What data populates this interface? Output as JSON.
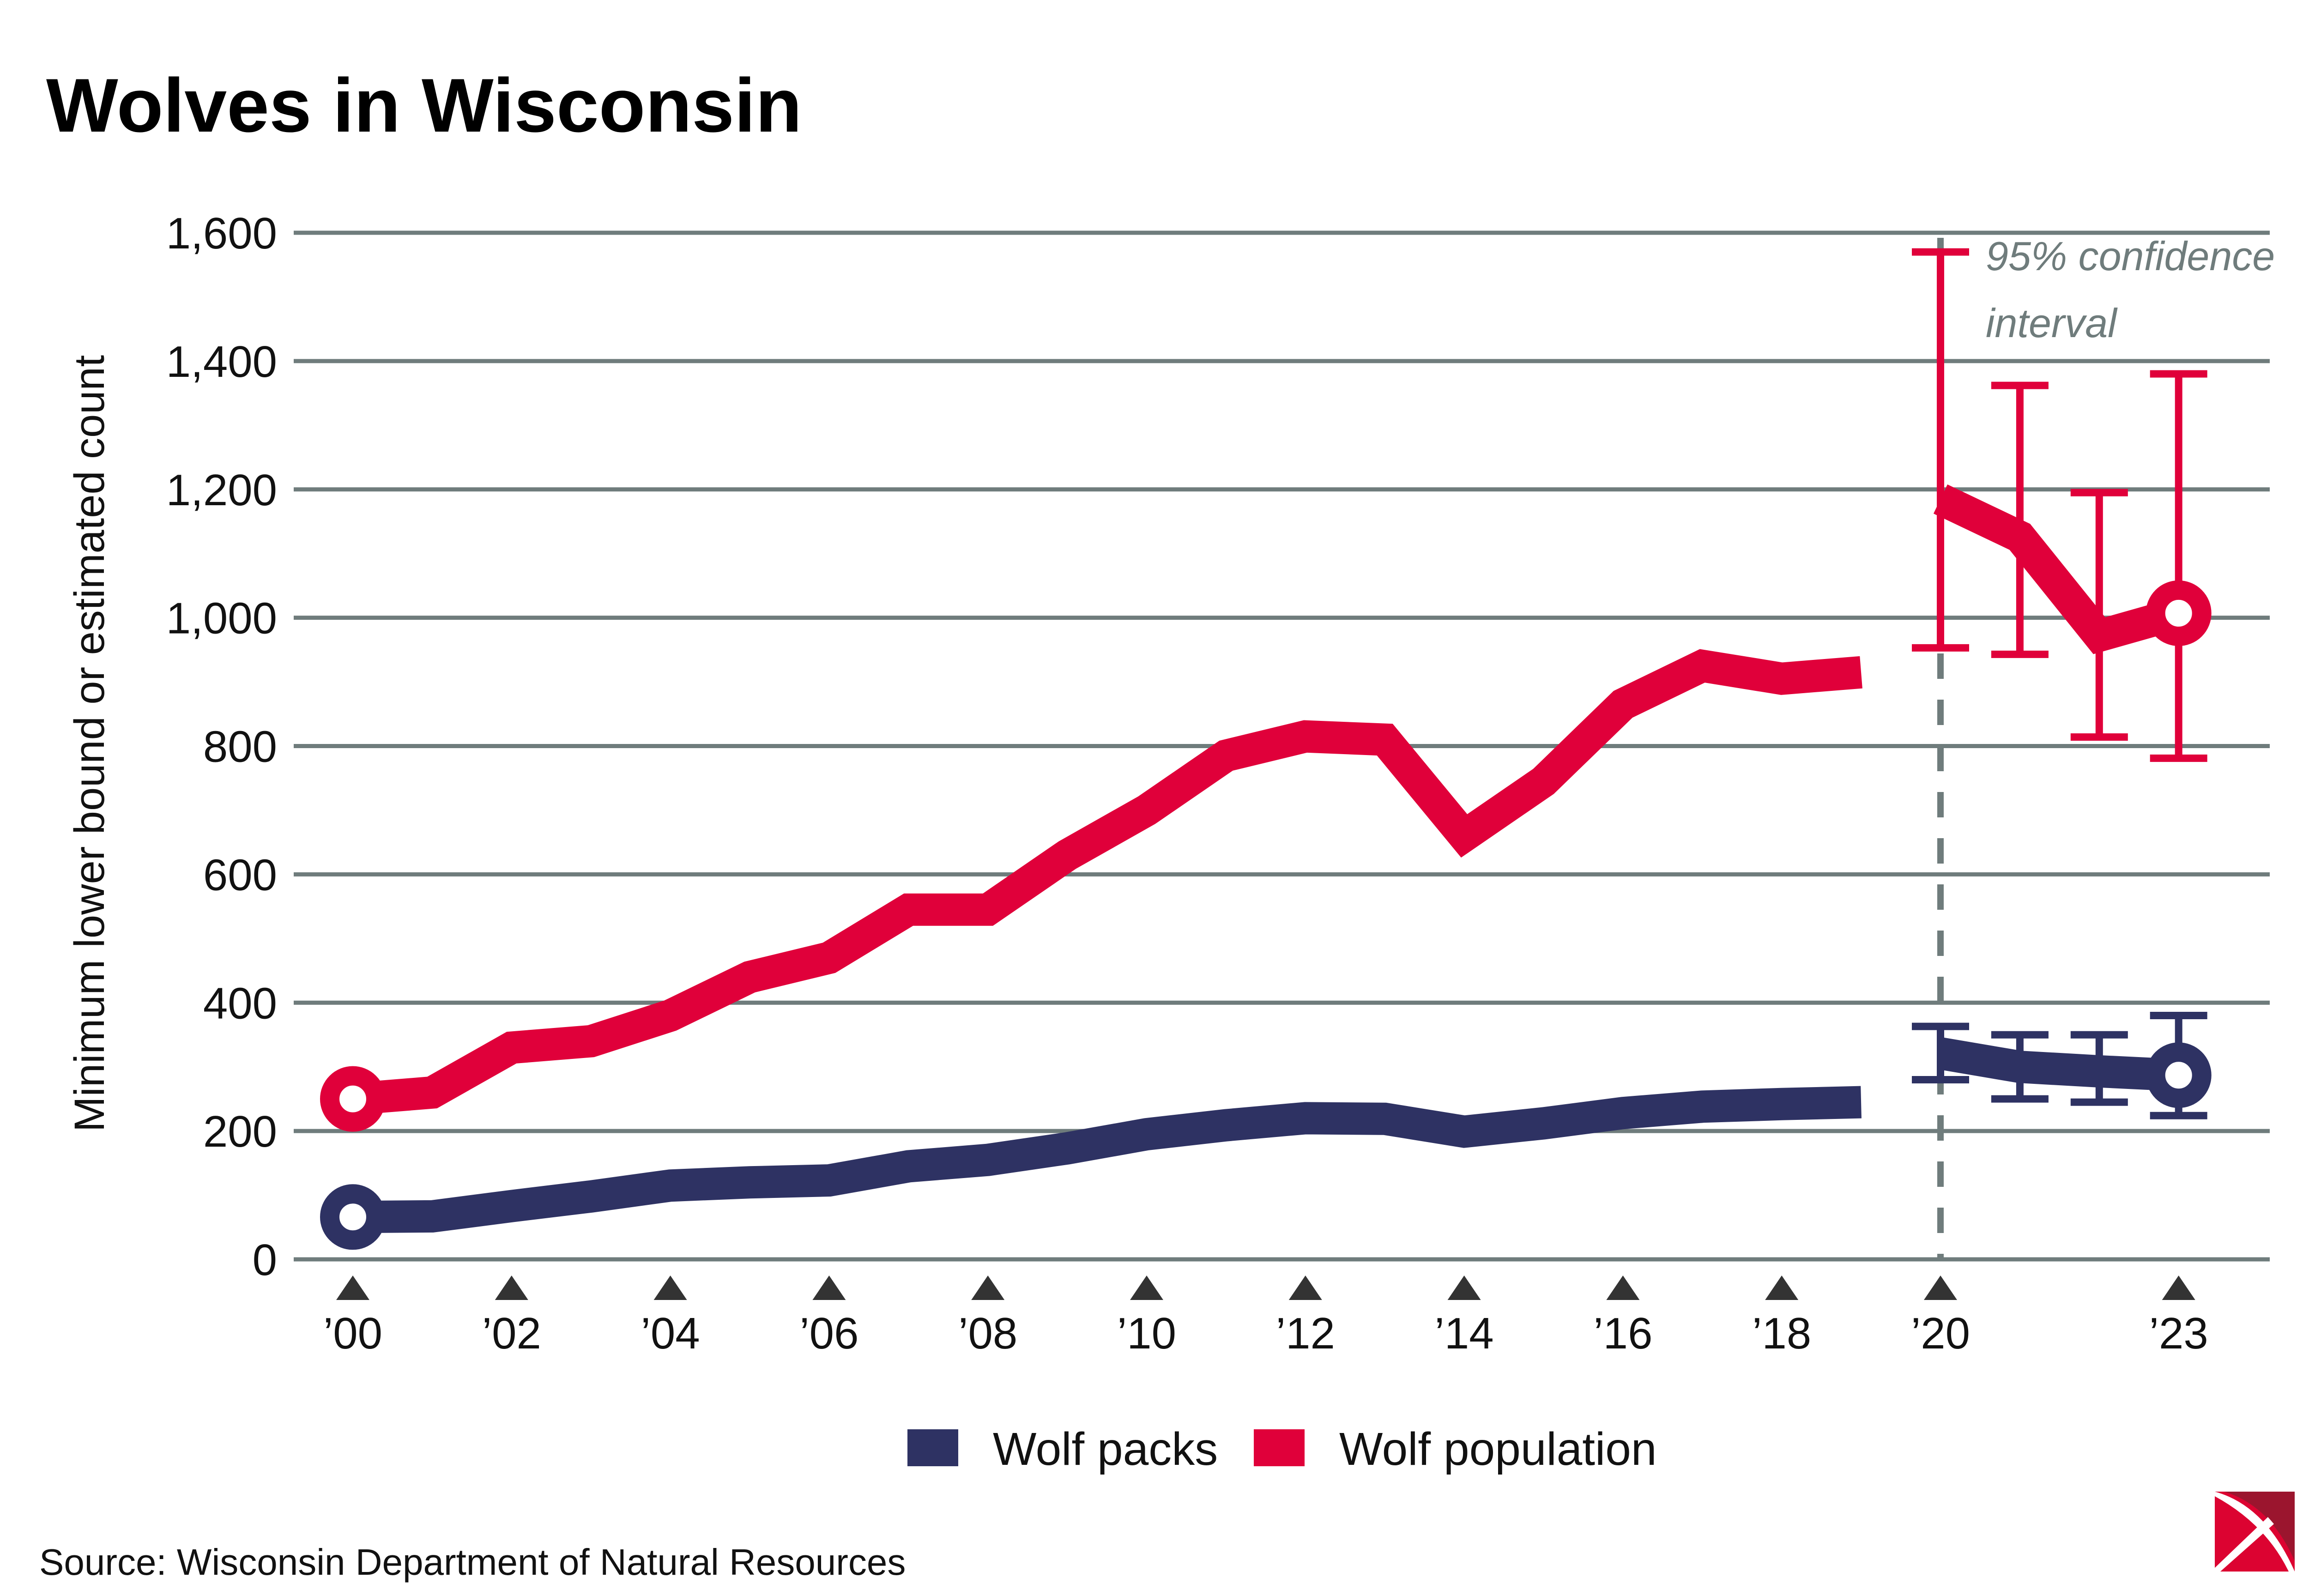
{
  "chart_data": {
    "type": "line",
    "title": "Wolves in Wisconsin",
    "ylabel": "Minimum lower bound or estimated count",
    "xlabel": "",
    "ylim": [
      0,
      1600
    ],
    "yticks": [
      0,
      200,
      400,
      600,
      800,
      1000,
      1200,
      1400,
      1600
    ],
    "ytick_labels": [
      "0",
      "200",
      "400",
      "600",
      "800",
      "1,000",
      "1,200",
      "1,400",
      "1,600"
    ],
    "xlim": [
      2000,
      2023
    ],
    "xticks": [
      2000,
      2002,
      2004,
      2006,
      2008,
      2010,
      2012,
      2014,
      2016,
      2018,
      2020,
      2023
    ],
    "xtick_labels": [
      "’00",
      "’02",
      "’04",
      "’06",
      "’08",
      "’10",
      "’12",
      "’14",
      "’16",
      "’18",
      "’20",
      "’23"
    ],
    "grid": true,
    "legend_placement": "bottom",
    "annotation": [
      "95% confidence",
      "interval"
    ],
    "series": [
      {
        "name": "Wolf packs",
        "color": "#2e3263",
        "x": [
          2000,
          2001,
          2002,
          2003,
          2004,
          2005,
          2006,
          2007,
          2008,
          2009,
          2010,
          2011,
          2012,
          2013,
          2014,
          2015,
          2016,
          2017,
          2018,
          2019
        ],
        "values": [
          66,
          67,
          83,
          98,
          115,
          120,
          123,
          145,
          155,
          173,
          195,
          209,
          220,
          219,
          199,
          212,
          228,
          238,
          242,
          245
        ],
        "estimate_x": [
          2020,
          2021,
          2022,
          2023
        ],
        "estimate_values": [
          321,
          300,
          293,
          287
        ],
        "ci_low": [
          280,
          250,
          245,
          224
        ],
        "ci_high": [
          363,
          350,
          350,
          380
        ]
      },
      {
        "name": "Wolf population",
        "color": "#e0003a",
        "x": [
          2000,
          2001,
          2002,
          2003,
          2004,
          2005,
          2006,
          2007,
          2008,
          2009,
          2010,
          2011,
          2012,
          2013,
          2014,
          2015,
          2016,
          2017,
          2018,
          2019
        ],
        "values": [
          250,
          260,
          330,
          340,
          380,
          440,
          470,
          545,
          545,
          630,
          700,
          785,
          815,
          810,
          660,
          745,
          865,
          925,
          905,
          915
        ],
        "estimate_x": [
          2020,
          2021,
          2022,
          2023
        ],
        "estimate_values": [
          1185,
          1126,
          972,
          1007
        ],
        "ci_low": [
          953,
          943,
          814,
          781
        ],
        "ci_high": [
          1570,
          1362,
          1195,
          1380
        ]
      }
    ],
    "source": "Source: Wisconsin Department of Natural Resources"
  },
  "colors": {
    "grid": "#6f7c7c",
    "logo_red": "#dc0331",
    "logo_dark": "#9b152e"
  }
}
